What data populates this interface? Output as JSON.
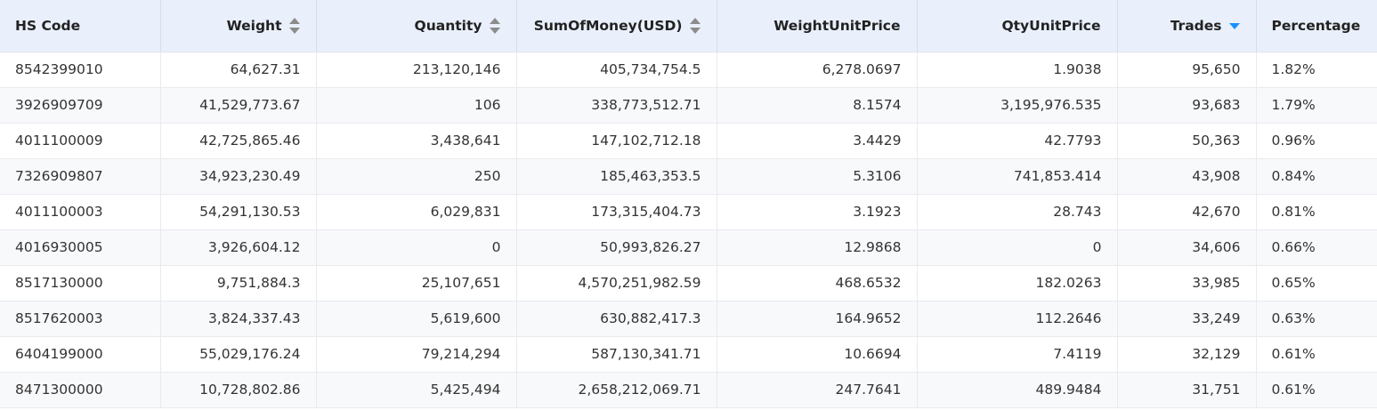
{
  "table": {
    "columns": [
      {
        "label": "HS Code",
        "align": "left",
        "sortable": false,
        "sort": "none"
      },
      {
        "label": "Weight",
        "align": "right",
        "sortable": true,
        "sort": "none"
      },
      {
        "label": "Quantity",
        "align": "right",
        "sortable": true,
        "sort": "none"
      },
      {
        "label": "SumOfMoney(USD)",
        "align": "right",
        "sortable": true,
        "sort": "none"
      },
      {
        "label": "WeightUnitPrice",
        "align": "right",
        "sortable": false,
        "sort": "none"
      },
      {
        "label": "QtyUnitPrice",
        "align": "right",
        "sortable": false,
        "sort": "none"
      },
      {
        "label": "Trades",
        "align": "right",
        "sortable": true,
        "sort": "desc"
      },
      {
        "label": "Percentage",
        "align": "left",
        "sortable": false,
        "sort": "none"
      }
    ],
    "rows": [
      [
        "8542399010",
        "64,627.31",
        "213,120,146",
        "405,734,754.5",
        "6,278.0697",
        "1.9038",
        "95,650",
        "1.82%"
      ],
      [
        "3926909709",
        "41,529,773.67",
        "106",
        "338,773,512.71",
        "8.1574",
        "3,195,976.535",
        "93,683",
        "1.79%"
      ],
      [
        "4011100009",
        "42,725,865.46",
        "3,438,641",
        "147,102,712.18",
        "3.4429",
        "42.7793",
        "50,363",
        "0.96%"
      ],
      [
        "7326909807",
        "34,923,230.49",
        "250",
        "185,463,353.5",
        "5.3106",
        "741,853.414",
        "43,908",
        "0.84%"
      ],
      [
        "4011100003",
        "54,291,130.53",
        "6,029,831",
        "173,315,404.73",
        "3.1923",
        "28.743",
        "42,670",
        "0.81%"
      ],
      [
        "4016930005",
        "3,926,604.12",
        "0",
        "50,993,826.27",
        "12.9868",
        "0",
        "34,606",
        "0.66%"
      ],
      [
        "8517130000",
        "9,751,884.3",
        "25,107,651",
        "4,570,251,982.59",
        "468.6532",
        "182.0263",
        "33,985",
        "0.65%"
      ],
      [
        "8517620003",
        "3,824,337.43",
        "5,619,600",
        "630,882,417.3",
        "164.9652",
        "112.2646",
        "33,249",
        "0.63%"
      ],
      [
        "6404199000",
        "55,029,176.24",
        "79,214,294",
        "587,130,341.71",
        "10.6694",
        "7.4119",
        "32,129",
        "0.61%"
      ],
      [
        "8471300000",
        "10,728,802.86",
        "5,425,494",
        "2,658,212,069.71",
        "247.7641",
        "489.9484",
        "31,751",
        "0.61%"
      ]
    ]
  }
}
